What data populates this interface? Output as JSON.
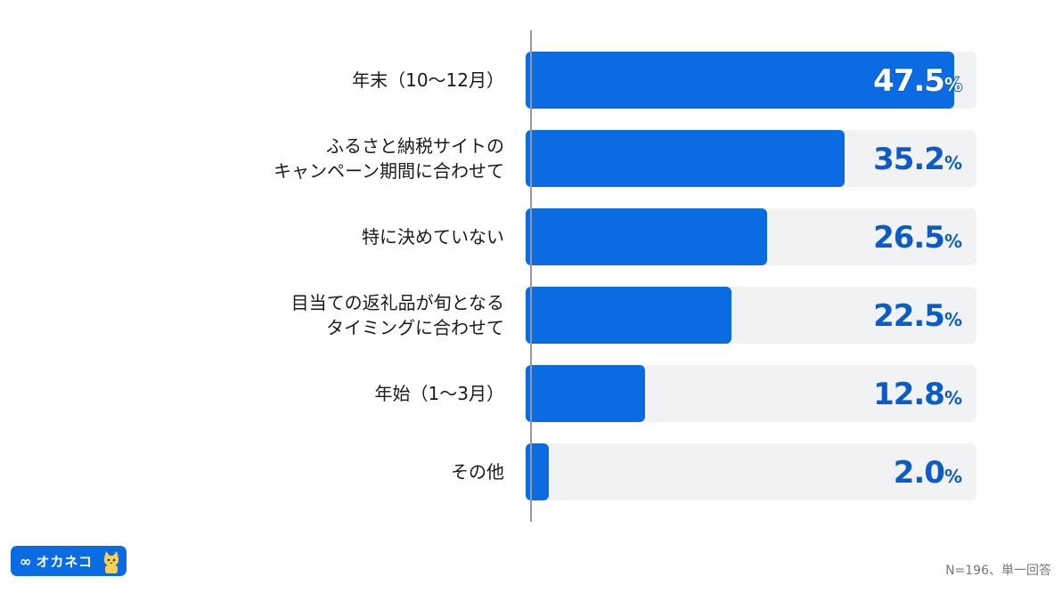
{
  "chart_data": {
    "type": "bar",
    "orientation": "horizontal",
    "categories": [
      [
        "年末（10〜12月）"
      ],
      [
        "ふるさと納税サイトの",
        "キャンペーン期間に合わせて"
      ],
      [
        "特に決めていない"
      ],
      [
        "目当ての返礼品が旬となる",
        "タイミングに合わせて"
      ],
      [
        "年始（1〜3月）"
      ],
      [
        "その他"
      ]
    ],
    "values": [
      47.5,
      35.2,
      26.5,
      22.5,
      12.8,
      2.0
    ],
    "value_labels": [
      "47.5",
      "35.2",
      "26.5",
      "22.5",
      "12.8",
      "2.0"
    ],
    "unit": "%",
    "xlim": [
      0,
      50
    ],
    "grid": false,
    "colors": {
      "bar": "#0b6be3",
      "track": "#f1f2f4",
      "value_text": "#0b5cc8",
      "axis": "#999999"
    }
  },
  "logo": {
    "symbol": "∞",
    "text": "オカネコ"
  },
  "footnote": "N=196、単一回答"
}
